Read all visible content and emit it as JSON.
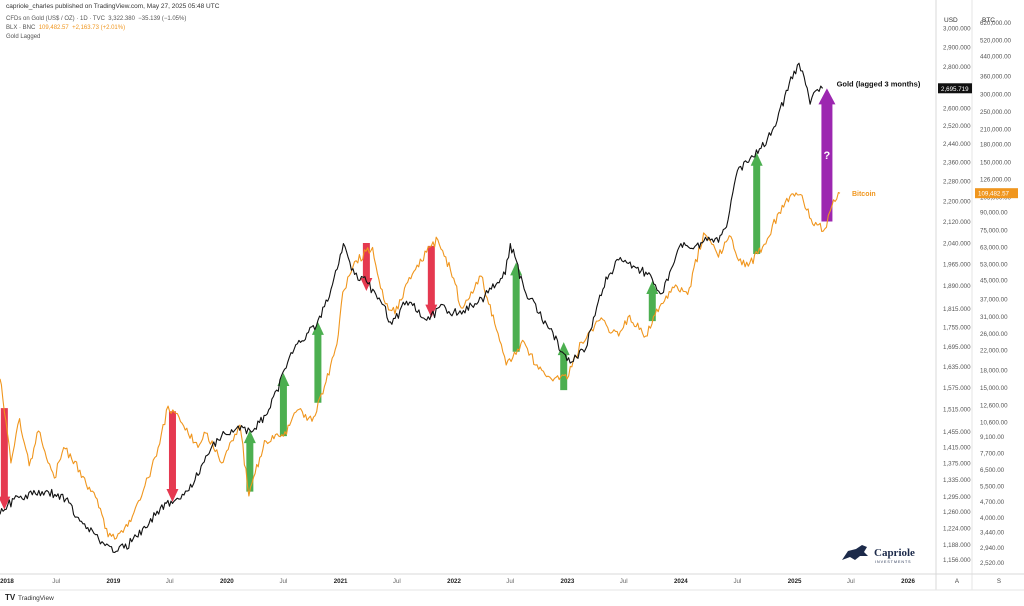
{
  "header": {
    "published": "capriole_charles published on TradingView.com, May 27, 2025 05:48 UTC",
    "gold_line": {
      "name": "CFDs on Gold (US$ / OZ) · 1D · TVC",
      "price": "3,322.380",
      "change": "−35.139 (−1.05%)"
    },
    "btc_line": {
      "name": "BLX · BNC",
      "price": "109,482.57",
      "change": "+2,163.73 (+2.01%)"
    },
    "lag_line": "Gold Lagged"
  },
  "axes": {
    "usd_header": "USD",
    "btc_header": "BTC",
    "usd_ticks": [
      "3,000.000",
      "2,900.000",
      "2,800.000",
      "2,700.000",
      "2,600.000",
      "2,520.000",
      "2,440.000",
      "2,360.000",
      "2,280.000",
      "2,200.000",
      "2,120.000",
      "2,040.000",
      "1,965.000",
      "1,890.000",
      "1,815.000",
      "1,755.000",
      "1,695.000",
      "1,635.000",
      "1,575.000",
      "1,515.000",
      "1,455.000",
      "1,415.000",
      "1,375.000",
      "1,335.000",
      "1,295.000",
      "1,260.000",
      "1,224.000",
      "1,188.000",
      "1,156.000"
    ],
    "btc_ticks": [
      "620,000.00",
      "520,000.00",
      "440,000.00",
      "360,000.00",
      "300,000.00",
      "250,000.00",
      "210,000.00",
      "180,000.00",
      "150,000.00",
      "126,000.00",
      "105,000.00",
      "90,000.00",
      "75,000.00",
      "63,000.00",
      "53,000.00",
      "45,000.00",
      "37,000.00",
      "31,000.00",
      "26,000.00",
      "22,000.00",
      "18,000.00",
      "15,000.00",
      "12,600.00",
      "10,600.00",
      "9,100.00",
      "7,700.00",
      "6,500.00",
      "5,500.00",
      "4,700.00",
      "4,000.00",
      "3,440.00",
      "2,940.00",
      "2,520.00"
    ],
    "x_ticks": [
      "2018",
      "Jul",
      "2019",
      "Jul",
      "2020",
      "Jul",
      "2021",
      "Jul",
      "2022",
      "Jul",
      "2023",
      "Jul",
      "2024",
      "Jul",
      "2025",
      "Jul",
      "2026"
    ],
    "axis_buttons": [
      "A",
      "S"
    ],
    "gold_price_tag": "2,695.719",
    "btc_price_tag": "109,482.57"
  },
  "annotations": {
    "gold_label": "Gold (lagged 3 months)",
    "btc_label": "Bitcoin",
    "question": "?"
  },
  "branding": {
    "logo_text": "Capriole",
    "logo_sub": "INVESTMENTS",
    "tradingview": "TradingView"
  },
  "colors": {
    "gold": "#111111",
    "btc": "#f0961e",
    "up": "#4caf50",
    "down": "#e53950",
    "question": "#9c27b0"
  },
  "chart_data": {
    "type": "line",
    "x_range": [
      "2018-01-01",
      "2026-04-01"
    ],
    "series": [
      {
        "name": "Gold (lagged 3 months)",
        "axis": "left",
        "points": [
          [
            "2018-01-01",
            1255
          ],
          [
            "2018-02-15",
            1290
          ],
          [
            "2018-04-15",
            1300
          ],
          [
            "2018-06-01",
            1310
          ],
          [
            "2018-08-01",
            1290
          ],
          [
            "2018-09-15",
            1240
          ],
          [
            "2018-11-15",
            1200
          ],
          [
            "2019-01-15",
            1175
          ],
          [
            "2019-03-01",
            1195
          ],
          [
            "2019-04-15",
            1225
          ],
          [
            "2019-06-01",
            1270
          ],
          [
            "2019-07-15",
            1285
          ],
          [
            "2019-09-01",
            1310
          ],
          [
            "2019-10-15",
            1375
          ],
          [
            "2019-11-15",
            1420
          ],
          [
            "2019-12-15",
            1445
          ],
          [
            "2020-02-01",
            1465
          ],
          [
            "2020-03-15",
            1460
          ],
          [
            "2020-04-15",
            1480
          ],
          [
            "2020-05-20",
            1520
          ],
          [
            "2020-07-15",
            1650
          ],
          [
            "2020-08-20",
            1715
          ],
          [
            "2020-10-15",
            1760
          ],
          [
            "2020-12-01",
            1880
          ],
          [
            "2021-01-10",
            2040
          ],
          [
            "2021-02-15",
            1930
          ],
          [
            "2021-03-15",
            1920
          ],
          [
            "2021-05-15",
            1830
          ],
          [
            "2021-06-15",
            1765
          ],
          [
            "2021-08-01",
            1840
          ],
          [
            "2021-10-15",
            1780
          ],
          [
            "2021-11-15",
            1820
          ],
          [
            "2022-01-15",
            1800
          ],
          [
            "2022-03-15",
            1830
          ],
          [
            "2022-05-01",
            1880
          ],
          [
            "2022-06-15",
            1930
          ],
          [
            "2022-07-01",
            2040
          ],
          [
            "2022-08-15",
            1880
          ],
          [
            "2022-10-01",
            1800
          ],
          [
            "2022-11-15",
            1740
          ],
          [
            "2022-12-15",
            1680
          ],
          [
            "2023-01-15",
            1650
          ],
          [
            "2023-03-01",
            1690
          ],
          [
            "2023-04-15",
            1860
          ],
          [
            "2023-05-15",
            1930
          ],
          [
            "2023-06-20",
            1990
          ],
          [
            "2023-08-01",
            1960
          ],
          [
            "2023-09-15",
            1930
          ],
          [
            "2023-11-01",
            1865
          ],
          [
            "2023-12-01",
            1950
          ],
          [
            "2024-01-01",
            2040
          ],
          [
            "2024-02-15",
            2030
          ],
          [
            "2024-03-15",
            2050
          ],
          [
            "2024-05-01",
            2045
          ],
          [
            "2024-06-01",
            2130
          ],
          [
            "2024-07-01",
            2325
          ],
          [
            "2024-08-01",
            2360
          ],
          [
            "2024-09-15",
            2420
          ],
          [
            "2024-11-01",
            2520
          ],
          [
            "2024-12-15",
            2720
          ],
          [
            "2025-01-15",
            2820
          ],
          [
            "2025-02-01",
            2750
          ],
          [
            "2025-02-20",
            2620
          ],
          [
            "2025-03-15",
            2690
          ],
          [
            "2025-04-01",
            2695
          ]
        ]
      },
      {
        "name": "Bitcoin",
        "axis": "right",
        "points": [
          [
            "2018-01-01",
            16500
          ],
          [
            "2018-01-10",
            13500
          ],
          [
            "2018-02-05",
            7000
          ],
          [
            "2018-03-05",
            11000
          ],
          [
            "2018-04-05",
            6800
          ],
          [
            "2018-05-05",
            9700
          ],
          [
            "2018-06-25",
            6000
          ],
          [
            "2018-07-25",
            8200
          ],
          [
            "2018-09-15",
            6500
          ],
          [
            "2018-11-20",
            4400
          ],
          [
            "2018-12-15",
            3300
          ],
          [
            "2019-02-01",
            3450
          ],
          [
            "2019-04-02",
            5000
          ],
          [
            "2019-05-30",
            8500
          ],
          [
            "2019-06-26",
            12500
          ],
          [
            "2019-08-15",
            10200
          ],
          [
            "2019-09-30",
            8200
          ],
          [
            "2019-10-25",
            9500
          ],
          [
            "2019-12-15",
            7000
          ],
          [
            "2020-02-12",
            10300
          ],
          [
            "2020-03-12",
            5000
          ],
          [
            "2020-05-01",
            8800
          ],
          [
            "2020-07-01",
            9200
          ],
          [
            "2020-08-15",
            12000
          ],
          [
            "2020-10-01",
            10700
          ],
          [
            "2020-11-15",
            16000
          ],
          [
            "2020-12-20",
            23500
          ],
          [
            "2021-01-08",
            40000
          ],
          [
            "2021-02-20",
            55000
          ],
          [
            "2021-04-14",
            63000
          ],
          [
            "2021-05-20",
            37000
          ],
          [
            "2021-06-25",
            32000
          ],
          [
            "2021-08-20",
            48000
          ],
          [
            "2021-10-20",
            64000
          ],
          [
            "2021-11-10",
            68000
          ],
          [
            "2021-12-31",
            46000
          ],
          [
            "2022-01-24",
            34000
          ],
          [
            "2022-03-29",
            47000
          ],
          [
            "2022-05-12",
            29000
          ],
          [
            "2022-06-18",
            19000
          ],
          [
            "2022-08-15",
            24000
          ],
          [
            "2022-09-20",
            19000
          ],
          [
            "2022-11-10",
            16500
          ],
          [
            "2022-12-31",
            16500
          ],
          [
            "2023-02-15",
            24000
          ],
          [
            "2023-04-15",
            30000
          ],
          [
            "2023-06-15",
            25500
          ],
          [
            "2023-07-15",
            31000
          ],
          [
            "2023-09-10",
            25500
          ],
          [
            "2023-10-25",
            34500
          ],
          [
            "2023-12-15",
            43000
          ],
          [
            "2024-01-23",
            39000
          ],
          [
            "2024-03-14",
            73000
          ],
          [
            "2024-05-01",
            57000
          ],
          [
            "2024-06-05",
            71000
          ],
          [
            "2024-07-05",
            55000
          ],
          [
            "2024-08-05",
            52000
          ],
          [
            "2024-09-25",
            65000
          ],
          [
            "2024-11-12",
            90000
          ],
          [
            "2024-12-17",
            106000
          ],
          [
            "2025-01-20",
            108000
          ],
          [
            "2025-02-28",
            80000
          ],
          [
            "2025-04-08",
            76000
          ],
          [
            "2025-05-01",
            96000
          ],
          [
            "2025-05-27",
            109482
          ]
        ]
      }
    ],
    "left_axis": {
      "label": "USD",
      "scale": "log",
      "range": [
        1140,
        3080
      ]
    },
    "right_axis": {
      "label": "BTC",
      "scale": "log",
      "range": [
        2400,
        680000
      ]
    },
    "arrows": [
      {
        "date": "2018-01-15",
        "dir": "down",
        "color": "red"
      },
      {
        "date": "2019-07-10",
        "dir": "down",
        "color": "red"
      },
      {
        "date": "2020-03-15",
        "dir": "up",
        "color": "green"
      },
      {
        "date": "2020-07-01",
        "dir": "up",
        "color": "green"
      },
      {
        "date": "2020-10-20",
        "dir": "up",
        "color": "green"
      },
      {
        "date": "2021-03-25",
        "dir": "down",
        "color": "red"
      },
      {
        "date": "2021-10-20",
        "dir": "down",
        "color": "red"
      },
      {
        "date": "2022-07-20",
        "dir": "up",
        "color": "green"
      },
      {
        "date": "2022-12-20",
        "dir": "up",
        "color": "green"
      },
      {
        "date": "2023-10-01",
        "dir": "up",
        "color": "green"
      },
      {
        "date": "2024-09-01",
        "dir": "up",
        "color": "green"
      },
      {
        "date": "2025-04-15",
        "dir": "up",
        "color": "purple"
      }
    ],
    "grid": false,
    "legend": "top-left"
  }
}
